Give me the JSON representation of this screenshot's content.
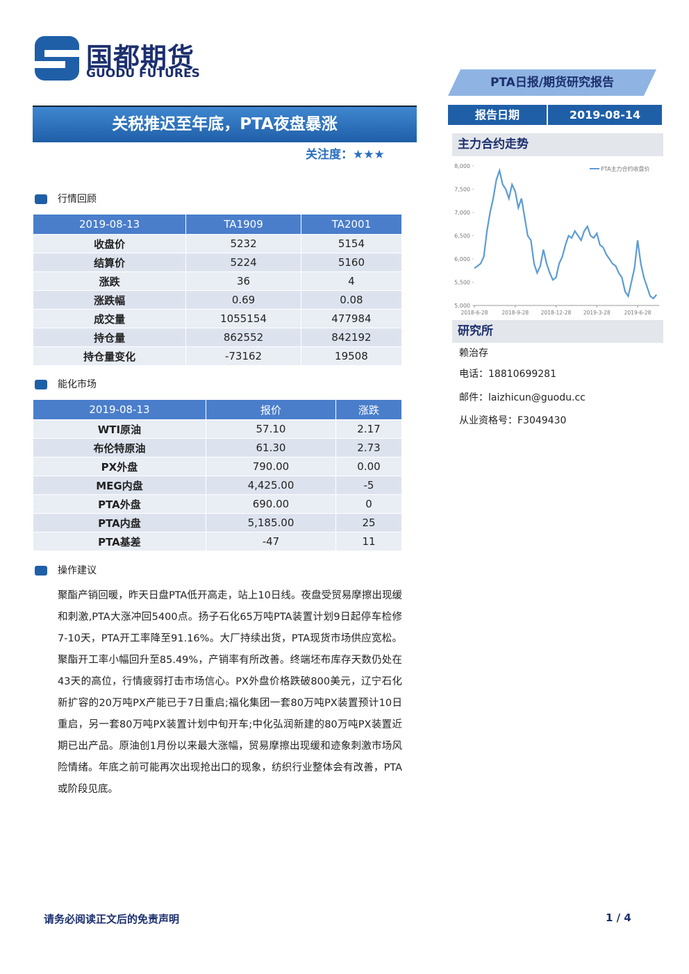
{
  "header": {
    "logo_cn": "国都期货",
    "logo_en": "GUODU FUTURES",
    "report_type": "PTA日报/期货研究报告",
    "date_label": "报告日期",
    "date": "2019-08-14"
  },
  "headline": {
    "title": "关税推迟至年底，PTA夜盘暴涨",
    "attention_label": "关注度：",
    "attention_stars": "★★★"
  },
  "market_review": {
    "heading": "行情回顾",
    "columns": [
      "2019-08-13",
      "TA1909",
      "TA2001"
    ],
    "rows": [
      [
        "收盘价",
        "5232",
        "5154"
      ],
      [
        "结算价",
        "5224",
        "5160"
      ],
      [
        "涨跌",
        "36",
        "4"
      ],
      [
        "涨跌幅",
        "0.69",
        "0.08"
      ],
      [
        "成交量",
        "1055154",
        "477984"
      ],
      [
        "持仓量",
        "862552",
        "842192"
      ],
      [
        "持仓量变化",
        "-73162",
        "19508"
      ]
    ]
  },
  "energy_market": {
    "heading": "能化市场",
    "columns": [
      "2019-08-13",
      "报价",
      "涨跌"
    ],
    "rows": [
      [
        "WTI原油",
        "57.10",
        "2.17"
      ],
      [
        "布伦特原油",
        "61.30",
        "2.73"
      ],
      [
        "PX外盘",
        "790.00",
        "0.00"
      ],
      [
        "MEG内盘",
        "4,425.00",
        "-5"
      ],
      [
        "PTA外盘",
        "690.00",
        "0"
      ],
      [
        "PTA内盘",
        "5,185.00",
        "25"
      ],
      [
        "PTA基差",
        "-47",
        "11"
      ]
    ]
  },
  "advice": {
    "heading": "操作建议",
    "text": "聚酯产销回暖，昨天日盘PTA低开高走，站上10日线。夜盘受贸易摩擦出现缓和刺激,PTA大涨冲回5400点。扬子石化65万吨PTA装置计划9日起停车检修7-10天，PTA开工率降至91.16%。大厂持续出货，PTA现货市场供应宽松。聚酯开工率小幅回升至85.49%，产销率有所改善。终端坯布库存天数仍处在43天的高位，行情疲弱打击市场信心。PX外盘价格跌破800美元，辽宁石化新扩容的20万吨PX产能已于7日重启;福化集团一套80万吨PX装置预计10日重启，另一套80万吨PX装置计划中旬开车;中化弘润新建的80万吨PX装置近期已出产品。原油创1月份以来最大涨幅，贸易摩擦出现缓和迹象刺激市场风险情绪。年底之前可能再次出现抢出口的现象，纺织行业整体会有改善，PTA或阶段见底。"
  },
  "research": {
    "heading": "研究所",
    "analyst": "赖治存",
    "phone": "电话：18810699281",
    "email": "邮件：laizhicun@guodu.cc",
    "license": "从业资格号：F3049430"
  },
  "footer": {
    "disclaimer": "请务必阅读正文后的免责声明",
    "page": "1 / 4"
  },
  "chart_data": {
    "type": "line",
    "title": "主力合约走势",
    "categories": [
      "2018-6-28",
      null,
      null,
      null,
      null,
      null,
      null,
      null,
      null,
      null,
      null,
      null,
      null,
      "2018-9-28",
      null,
      null,
      null,
      null,
      null,
      null,
      null,
      null,
      null,
      null,
      null,
      null,
      "2018-12-28",
      null,
      null,
      null,
      null,
      null,
      null,
      null,
      null,
      null,
      null,
      null,
      null,
      "2019-3-28",
      null,
      null,
      null,
      null,
      null,
      null,
      null,
      null,
      null,
      null,
      null,
      null,
      "2019-6-28",
      null,
      null,
      null,
      null,
      null,
      null
    ],
    "series": [
      {
        "name": "PTA主力合约收盘价",
        "color": "#5b9bd5",
        "values": [
          5800,
          5850,
          5900,
          6050,
          6600,
          7000,
          7300,
          7700,
          7900,
          7600,
          7500,
          7300,
          7600,
          7450,
          7100,
          7300,
          6900,
          6500,
          6400,
          5900,
          5700,
          5850,
          6200,
          5900,
          5700,
          5550,
          5600,
          5900,
          6050,
          6300,
          6500,
          6450,
          6600,
          6500,
          6400,
          6600,
          6700,
          6500,
          6450,
          6550,
          6300,
          6250,
          6100,
          6000,
          5900,
          5850,
          5700,
          5600,
          5300,
          5200,
          5500,
          5800,
          6400,
          5900,
          5600,
          5400,
          5200,
          5150,
          5230
        ]
      }
    ],
    "ylim": [
      5000,
      8000
    ],
    "yticks": [
      {
        "value": 5000,
        "label": "5,000"
      },
      {
        "value": 5500,
        "label": "5,500"
      },
      {
        "value": 6000,
        "label": "6,000"
      },
      {
        "value": 6500,
        "label": "6,500"
      },
      {
        "value": 7000,
        "label": "7,000"
      },
      {
        "value": 7500,
        "label": "7,500"
      },
      {
        "value": 8000,
        "label": "8,000"
      }
    ]
  }
}
